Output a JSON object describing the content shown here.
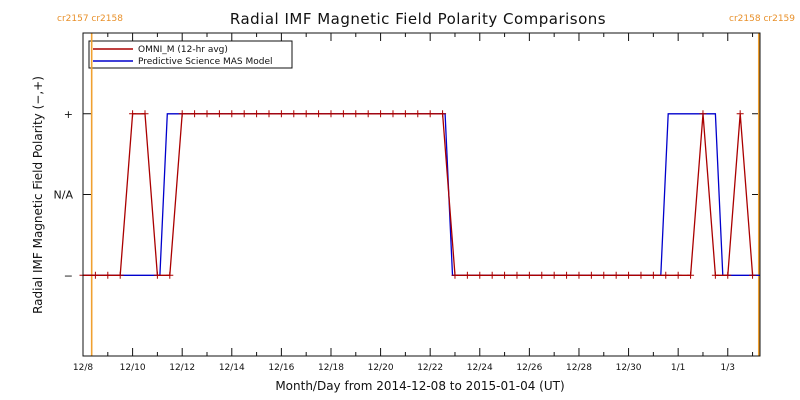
{
  "chart_data": {
    "type": "line",
    "title": "Radial IMF Magnetic Field Polarity Comparisons",
    "xlabel": "Month/Day from 2014-12-08 to 2015-01-04 (UT)",
    "ylabel": "Radial IMF Magnetic Field Polarity (−,+)",
    "x_unit": "days after 2014-12-08 00:00 UT",
    "xlim": [
      0,
      27.3
    ],
    "ylim": [
      -2,
      2
    ],
    "x_tick_positions": [
      0,
      2,
      4,
      6,
      8,
      10,
      12,
      14,
      16,
      18,
      20,
      22,
      24,
      26
    ],
    "x_tick_labels": [
      "12/8",
      "12/10",
      "12/12",
      "12/14",
      "12/16",
      "12/18",
      "12/20",
      "12/22",
      "12/24",
      "12/26",
      "12/28",
      "12/30",
      "1/1",
      "1/3"
    ],
    "y_ticks": [
      {
        "value": 1,
        "label": "+"
      },
      {
        "value": 0,
        "label": "N/A"
      },
      {
        "value": -1,
        "label": "−"
      }
    ],
    "carrington_markers": [
      {
        "x": 0.35,
        "labels": [
          "cr2157",
          "cr2158"
        ],
        "side": "left"
      },
      {
        "x": 27.25,
        "labels": [
          "cr2158",
          "cr2159"
        ],
        "side": "right"
      }
    ],
    "legend": {
      "placement": "top-left"
    },
    "series": [
      {
        "name": "OMNI_M (12-hr avg)",
        "color": "#aa0000",
        "markers": "plus",
        "x": [
          0.0,
          0.5,
          1.0,
          1.5,
          2.0,
          2.5,
          3.0,
          3.5,
          4.0,
          4.5,
          5.0,
          5.5,
          6.0,
          6.5,
          7.0,
          7.5,
          8.0,
          8.5,
          9.0,
          9.5,
          10.0,
          10.5,
          11.0,
          11.5,
          12.0,
          12.5,
          13.0,
          13.5,
          14.0,
          14.5,
          15.0,
          15.5,
          16.0,
          16.5,
          17.0,
          17.5,
          18.0,
          18.5,
          19.0,
          19.5,
          20.0,
          20.5,
          21.0,
          21.5,
          22.0,
          22.5,
          23.0,
          23.5,
          24.0,
          24.5,
          25.0,
          25.5,
          26.0,
          26.5,
          27.0
        ],
        "y": [
          -1,
          -1,
          -1,
          -1,
          1,
          1,
          -1,
          -1,
          1,
          1,
          1,
          1,
          1,
          1,
          1,
          1,
          1,
          1,
          1,
          1,
          1,
          1,
          1,
          1,
          1,
          1,
          1,
          1,
          1,
          1,
          -1,
          -1,
          -1,
          -1,
          -1,
          -1,
          -1,
          -1,
          -1,
          -1,
          -1,
          -1,
          -1,
          -1,
          -1,
          -1,
          -1,
          -1,
          -1,
          -1,
          1,
          -1,
          -1,
          1,
          -1
        ]
      },
      {
        "name": "Predictive Science MAS Model",
        "color": "#0000cc",
        "markers": "none",
        "x": [
          0.0,
          3.1,
          3.4,
          14.6,
          14.9,
          23.3,
          23.6,
          25.5,
          25.8,
          27.3
        ],
        "y": [
          -1,
          -1,
          1,
          1,
          -1,
          -1,
          1,
          1,
          -1,
          -1
        ]
      }
    ]
  }
}
